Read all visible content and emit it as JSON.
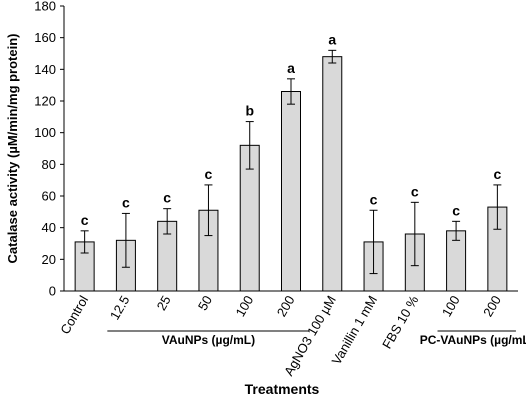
{
  "chart_data": {
    "type": "bar",
    "ylabel": "Catalase activity (µM/min/mg protein)",
    "xlabel": "Treatments",
    "ylim": [
      0,
      180
    ],
    "yticks": [
      0,
      20,
      40,
      60,
      80,
      100,
      120,
      140,
      160,
      180
    ],
    "categories": [
      "Control",
      "12.5",
      "25",
      "50",
      "100",
      "200",
      "AgNO3 100 µM",
      "Vanillin 1 mM",
      "FBS 10 %",
      "100",
      "200"
    ],
    "values": [
      31,
      32,
      44,
      51,
      92,
      126,
      148,
      31,
      36,
      38,
      53
    ],
    "errors": [
      7,
      17,
      8,
      16,
      15,
      8,
      4,
      20,
      20,
      6,
      14
    ],
    "letters": [
      "c",
      "c",
      "c",
      "c",
      "b",
      "a",
      "a",
      "c",
      "c",
      "c",
      "c"
    ],
    "groups": [
      {
        "label": "VAuNPs (µg/mL)",
        "from": 1,
        "to": 5
      },
      {
        "label": "PC-VAuNPs (µg/mL)",
        "from": 9,
        "to": 10
      }
    ],
    "bar_color": "#d9d9d9",
    "grid": false
  }
}
